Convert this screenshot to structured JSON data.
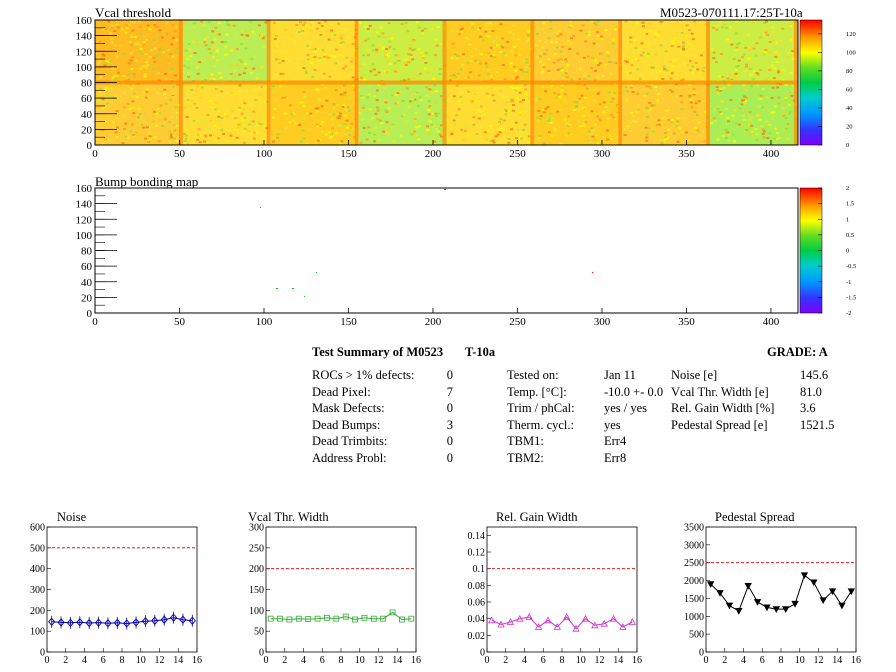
{
  "vcal_map": {
    "title": "Vcal threshold",
    "module_label": "M0523-070111.17:25T-10a",
    "x_ticks": [
      "0",
      "50",
      "100",
      "150",
      "200",
      "250",
      "300",
      "350",
      "400"
    ],
    "y_ticks": [
      "0",
      "20",
      "40",
      "60",
      "80",
      "100",
      "120",
      "140",
      "160"
    ],
    "color_scale_ticks": [
      "0",
      "20",
      "40",
      "60",
      "80",
      "100",
      "120"
    ]
  },
  "bump_map": {
    "title": "Bump bonding map",
    "x_ticks": [
      "0",
      "50",
      "100",
      "150",
      "200",
      "250",
      "300",
      "350",
      "400"
    ],
    "y_ticks": [
      "0",
      "20",
      "40",
      "60",
      "80",
      "100",
      "120",
      "140",
      "160"
    ],
    "color_scale_ticks": [
      "-2",
      "-1.5",
      "-1",
      "-0.5",
      "0",
      "0.5",
      "1",
      "1.5",
      "2"
    ]
  },
  "summary": {
    "title": "Test Summary of M0523",
    "temp_label": "T-10a",
    "grade": "GRADE:  A",
    "rows": [
      {
        "label": "ROCs > 1% defects:",
        "value": "0"
      },
      {
        "label": "Dead Pixel:",
        "value": "7"
      },
      {
        "label": "Mask Defects:",
        "value": "0"
      },
      {
        "label": "Dead Bumps:",
        "value": "3"
      },
      {
        "label": "Dead Trimbits:",
        "value": "0"
      },
      {
        "label": "Address Probl:",
        "value": "0"
      }
    ],
    "info": [
      {
        "label": "Tested on:",
        "value": "Jan 11"
      },
      {
        "label": "Temp. [°C]:",
        "value": "-10.0 +- 0.0"
      },
      {
        "label": "Trim / phCal:",
        "value": "yes / yes"
      },
      {
        "label": "Therm. cycl.:",
        "value": "yes"
      },
      {
        "label": "TBM1:",
        "value": "Err4"
      },
      {
        "label": "TBM2:",
        "value": "Err8"
      }
    ],
    "params": [
      {
        "label": "Noise [e]",
        "value": "145.6"
      },
      {
        "label": "Vcal Thr. Width [e]",
        "value": "81.0"
      },
      {
        "label": "Rel. Gain Width [%]",
        "value": "3.6"
      },
      {
        "label": "Pedestal Spread [e]",
        "value": "1521.5"
      }
    ]
  },
  "chart_data": [
    {
      "type": "line",
      "title": "Noise",
      "x": [
        0,
        1,
        2,
        3,
        4,
        5,
        6,
        7,
        8,
        9,
        10,
        11,
        12,
        13,
        14,
        15
      ],
      "values": [
        145,
        142,
        140,
        143,
        139,
        141,
        138,
        140,
        137,
        142,
        148,
        150,
        155,
        165,
        155,
        150
      ],
      "xlim": [
        0,
        16
      ],
      "ylim": [
        0,
        600
      ],
      "y_ticks": [
        0,
        100,
        200,
        300,
        400,
        500,
        600
      ],
      "x_ticks": [
        0,
        2,
        4,
        6,
        8,
        10,
        12,
        14,
        16
      ],
      "threshold": 500,
      "color": "#0000aa",
      "marker": "diamond",
      "error_bars": true
    },
    {
      "type": "line",
      "title": "Vcal Thr. Width",
      "x": [
        0,
        1,
        2,
        3,
        4,
        5,
        6,
        7,
        8,
        9,
        10,
        11,
        12,
        13,
        14,
        15
      ],
      "values": [
        80,
        80,
        78,
        80,
        79,
        80,
        82,
        80,
        85,
        78,
        82,
        80,
        80,
        95,
        78,
        80
      ],
      "xlim": [
        0,
        16
      ],
      "ylim": [
        0,
        300
      ],
      "y_ticks": [
        0,
        50,
        100,
        150,
        200,
        250,
        300
      ],
      "x_ticks": [
        0,
        2,
        4,
        6,
        8,
        10,
        12,
        14,
        16
      ],
      "threshold": 200,
      "color": "#33aa33",
      "marker": "square"
    },
    {
      "type": "line",
      "title": "Rel. Gain Width",
      "x": [
        0,
        1,
        2,
        3,
        4,
        5,
        6,
        7,
        8,
        9,
        10,
        11,
        12,
        13,
        14,
        15
      ],
      "values": [
        0.038,
        0.033,
        0.036,
        0.04,
        0.042,
        0.03,
        0.038,
        0.03,
        0.042,
        0.028,
        0.04,
        0.032,
        0.034,
        0.04,
        0.03,
        0.036
      ],
      "xlim": [
        0,
        16
      ],
      "ylim": [
        0,
        0.15
      ],
      "y_ticks": [
        0,
        0.02,
        0.04,
        0.06,
        0.08,
        0.1,
        0.12,
        0.14
      ],
      "y_tick_labels": [
        "0",
        "0.02",
        "0.04",
        "0.06",
        "0.08",
        "0.1",
        "0.12",
        "0.14"
      ],
      "x_ticks": [
        0,
        2,
        4,
        6,
        8,
        10,
        12,
        14,
        16
      ],
      "threshold": 0.1,
      "color": "#cc33cc",
      "marker": "triangle"
    },
    {
      "type": "line",
      "title": "Pedestal Spread",
      "x": [
        0,
        1,
        2,
        3,
        4,
        5,
        6,
        7,
        8,
        9,
        10,
        11,
        12,
        13,
        14,
        15
      ],
      "values": [
        1900,
        1650,
        1300,
        1150,
        1850,
        1400,
        1250,
        1200,
        1200,
        1350,
        2150,
        1950,
        1450,
        1700,
        1300,
        1700
      ],
      "xlim": [
        0,
        16
      ],
      "ylim": [
        0,
        3500
      ],
      "y_ticks": [
        0,
        500,
        1000,
        1500,
        2000,
        2500,
        3000,
        3500
      ],
      "x_ticks": [
        0,
        2,
        4,
        6,
        8,
        10,
        12,
        14,
        16
      ],
      "threshold": 2500,
      "color": "#000000",
      "marker": "triangle-down"
    }
  ]
}
